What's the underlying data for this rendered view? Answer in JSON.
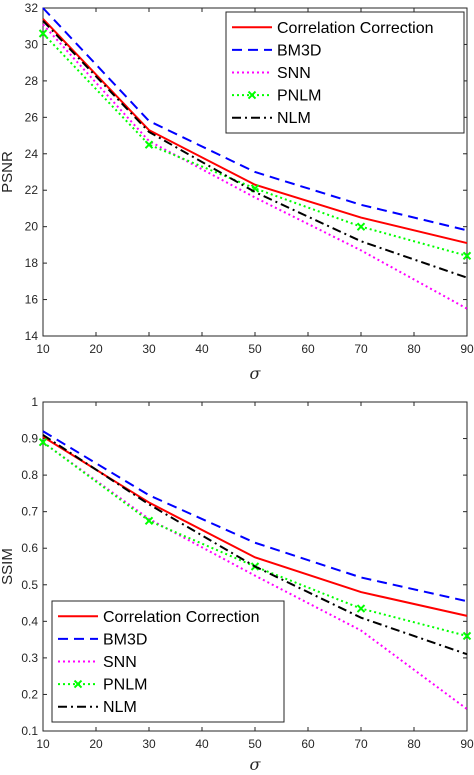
{
  "chart_data": [
    {
      "type": "line",
      "xlabel": "σ",
      "ylabel": "PSNR",
      "xlim": [
        10,
        90
      ],
      "ylim": [
        14,
        32
      ],
      "xticks": [
        10,
        20,
        30,
        40,
        50,
        60,
        70,
        80,
        90
      ],
      "yticks": [
        14,
        16,
        18,
        20,
        22,
        24,
        26,
        28,
        30,
        32
      ],
      "legend": "top-right",
      "x": [
        10,
        30,
        50,
        70,
        90
      ],
      "series": [
        {
          "name": "Correlation Correction",
          "values": [
            31.4,
            25.3,
            22.3,
            20.5,
            19.1
          ],
          "color": "#ff0000",
          "dash": "solid",
          "marker": "none"
        },
        {
          "name": "BM3D",
          "values": [
            32.0,
            25.8,
            23.0,
            21.2,
            19.8
          ],
          "color": "#0000ff",
          "dash": "dashed",
          "marker": "none"
        },
        {
          "name": "SNN",
          "values": [
            31.1,
            24.7,
            21.6,
            18.7,
            15.5
          ],
          "color": "#ff00ff",
          "dash": "dotted",
          "marker": "none"
        },
        {
          "name": "PNLM",
          "values": [
            30.6,
            24.5,
            22.1,
            20.0,
            18.4
          ],
          "color": "#00ff00",
          "dash": "dotted",
          "marker": "x"
        },
        {
          "name": "NLM",
          "values": [
            31.3,
            25.2,
            21.9,
            19.2,
            17.2
          ],
          "color": "#000000",
          "dash": "dashdot",
          "marker": "none"
        }
      ]
    },
    {
      "type": "line",
      "xlabel": "σ",
      "ylabel": "SSIM",
      "xlim": [
        10,
        90
      ],
      "ylim": [
        0.1,
        1
      ],
      "xticks": [
        10,
        20,
        30,
        40,
        50,
        60,
        70,
        80,
        90
      ],
      "yticks": [
        0.1,
        0.2,
        0.3,
        0.4,
        0.5,
        0.6,
        0.7,
        0.8,
        0.9,
        1
      ],
      "legend": "bottom-left",
      "x": [
        10,
        30,
        50,
        70,
        90
      ],
      "series": [
        {
          "name": "Correlation Correction",
          "values": [
            0.905,
            0.725,
            0.575,
            0.48,
            0.415
          ],
          "color": "#ff0000",
          "dash": "solid",
          "marker": "none"
        },
        {
          "name": "BM3D",
          "values": [
            0.92,
            0.745,
            0.615,
            0.52,
            0.455
          ],
          "color": "#0000ff",
          "dash": "dashed",
          "marker": "none"
        },
        {
          "name": "SNN",
          "values": [
            0.89,
            0.68,
            0.525,
            0.375,
            0.16
          ],
          "color": "#ff00ff",
          "dash": "dotted",
          "marker": "none"
        },
        {
          "name": "PNLM",
          "values": [
            0.89,
            0.675,
            0.55,
            0.435,
            0.36
          ],
          "color": "#00ff00",
          "dash": "dotted",
          "marker": "x"
        },
        {
          "name": "NLM",
          "values": [
            0.91,
            0.72,
            0.55,
            0.41,
            0.31
          ],
          "color": "#000000",
          "dash": "dashdot",
          "marker": "none"
        }
      ]
    }
  ]
}
